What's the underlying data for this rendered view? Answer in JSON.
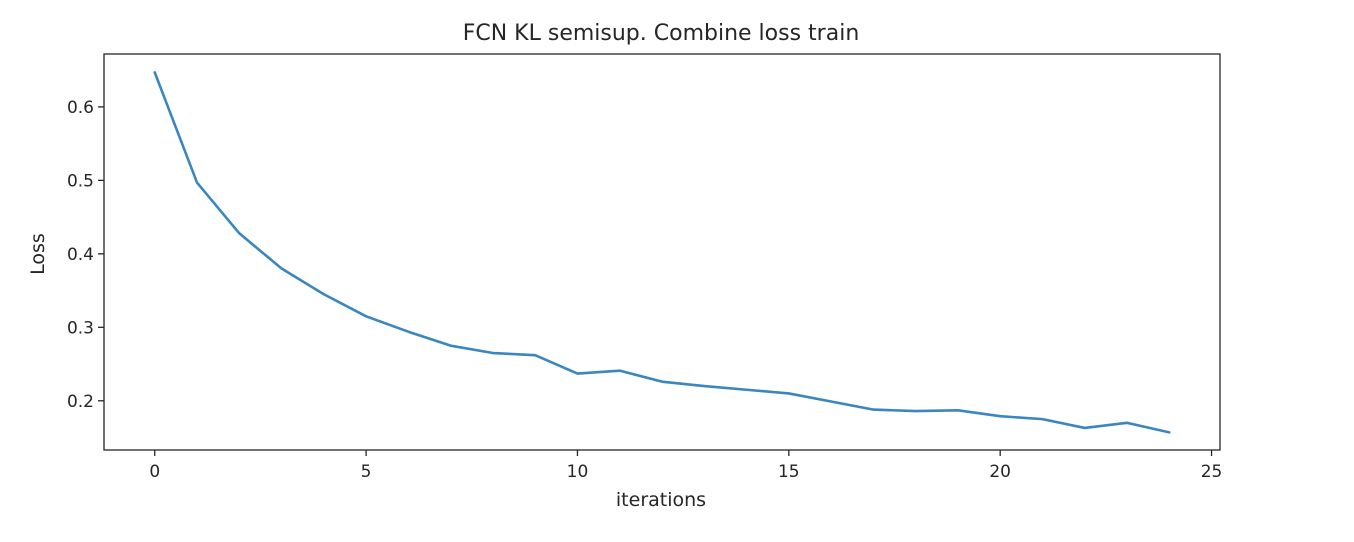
{
  "chart_data": {
    "type": "line",
    "title": "FCN KL semisup. Combine loss train",
    "xlabel": "iterations",
    "ylabel": "Loss",
    "xlim": [
      -1.2,
      25.2
    ],
    "ylim": [
      0.133,
      0.672
    ],
    "xticks": [
      0,
      5,
      10,
      15,
      20,
      25
    ],
    "xtick_labels": [
      "0",
      "5",
      "10",
      "15",
      "20",
      "25"
    ],
    "yticks": [
      0.2,
      0.3,
      0.4,
      0.5,
      0.6
    ],
    "ytick_labels": [
      "0.2",
      "0.3",
      "0.4",
      "0.5",
      "0.6"
    ],
    "grid": false,
    "series": [
      {
        "color": "#3a87c0",
        "x": [
          0,
          1,
          2,
          3,
          4,
          5,
          6,
          7,
          8,
          9,
          10,
          11,
          12,
          13,
          14,
          15,
          16,
          17,
          18,
          19,
          20,
          21,
          22,
          23,
          24
        ],
        "values": [
          0.647,
          0.497,
          0.428,
          0.38,
          0.345,
          0.315,
          0.294,
          0.275,
          0.265,
          0.262,
          0.237,
          0.241,
          0.226,
          0.22,
          0.215,
          0.21,
          0.199,
          0.188,
          0.186,
          0.187,
          0.179,
          0.175,
          0.163,
          0.17,
          0.157
        ]
      }
    ]
  }
}
